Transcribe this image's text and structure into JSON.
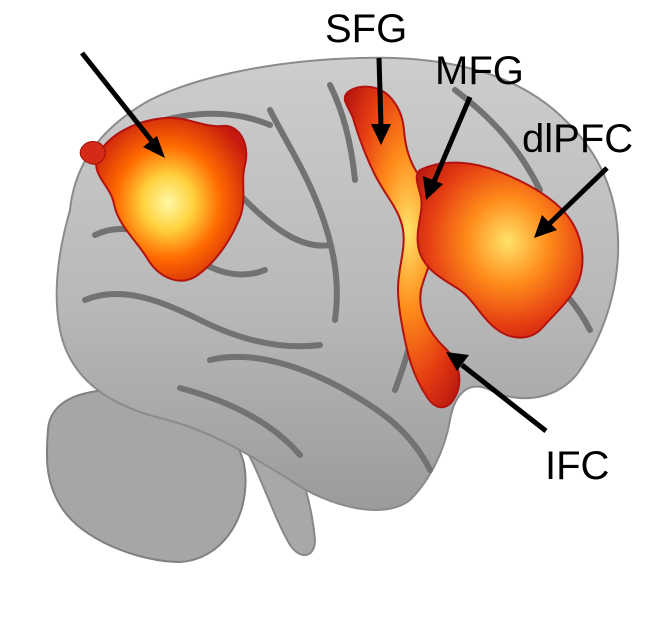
{
  "figure": {
    "labels": {
      "sfg": "SFG",
      "mfg": "MFG",
      "dlpfc": "dlPFC",
      "ifc": "IFC"
    },
    "colors": {
      "background": "#ffffff",
      "cortex": "#b8b8b8",
      "sulcus": "#6f6f6f",
      "cerebellum": "#a6a6a6",
      "activation_low": "#cc1d12",
      "activation_mid": "#ff6a00",
      "activation_high": "#fff36b",
      "arrow": "#000000"
    },
    "icons": [
      "arrow-icon"
    ]
  }
}
